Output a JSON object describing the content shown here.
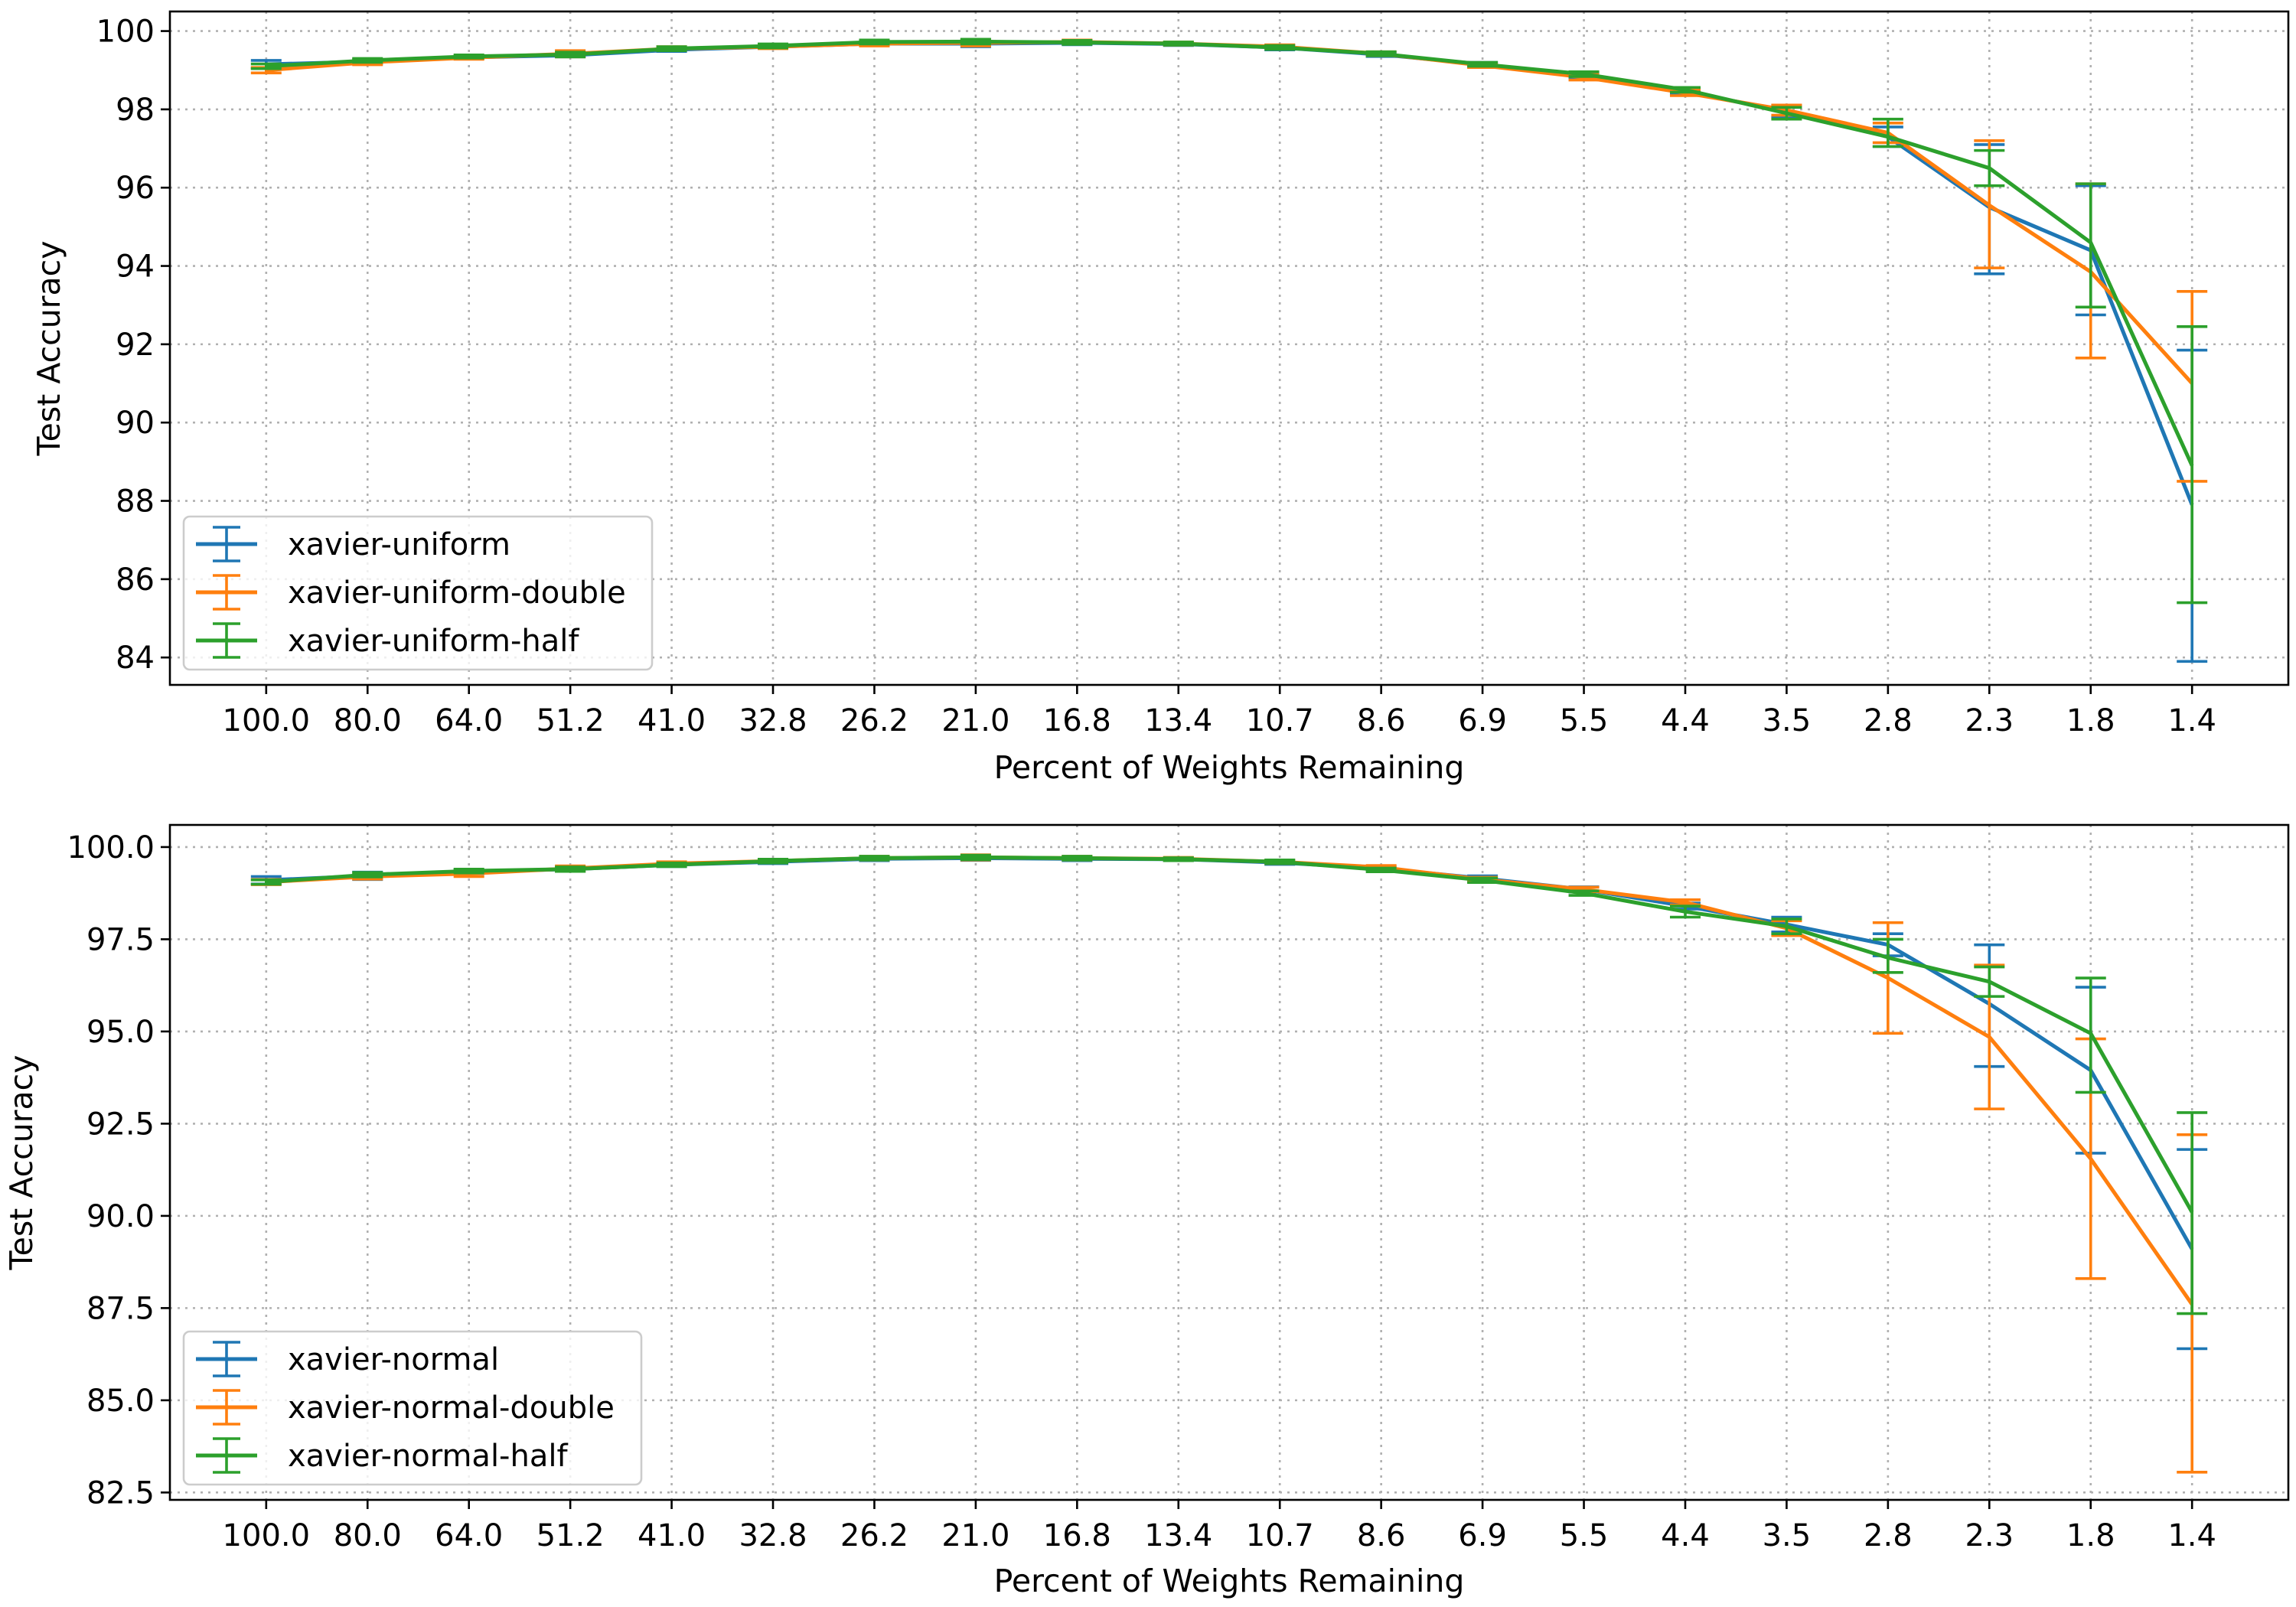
{
  "colors": {
    "blue": "#1f77b4",
    "orange": "#ff7f0e",
    "green": "#2ca02c"
  },
  "chart_data": [
    {
      "type": "line",
      "xlabel": "Percent of Weights Remaining",
      "ylabel": "Test Accuracy",
      "categories": [
        "100.0",
        "80.0",
        "64.0",
        "51.2",
        "41.0",
        "32.8",
        "26.2",
        "21.0",
        "16.8",
        "13.4",
        "10.7",
        "8.6",
        "6.9",
        "5.5",
        "4.4",
        "3.5",
        "2.8",
        "2.3",
        "1.8",
        "1.4"
      ],
      "ylim": [
        83.3,
        100.5
      ],
      "yticks": [
        84,
        86,
        88,
        90,
        92,
        94,
        96,
        98,
        100
      ],
      "yticklabels": [
        "84",
        "86",
        "88",
        "90",
        "92",
        "94",
        "96",
        "98",
        "100"
      ],
      "grid": true,
      "legend_position": "lower-left",
      "series": [
        {
          "name": "xavier-uniform",
          "color": "#1f77b4",
          "values": [
            99.15,
            99.22,
            99.33,
            99.38,
            99.52,
            99.6,
            99.68,
            99.68,
            99.7,
            99.67,
            99.58,
            99.4,
            99.15,
            98.85,
            98.45,
            97.95,
            97.3,
            95.5,
            94.4,
            87.9
          ],
          "lower": [
            99.05,
            99.17,
            99.3,
            99.34,
            99.48,
            99.56,
            99.64,
            99.6,
            99.65,
            99.63,
            99.52,
            99.35,
            99.1,
            98.8,
            98.38,
            97.8,
            97.05,
            93.8,
            92.75,
            83.9
          ],
          "upper": [
            99.25,
            99.27,
            99.36,
            99.42,
            99.56,
            99.64,
            99.72,
            99.76,
            99.75,
            99.71,
            99.64,
            99.45,
            99.2,
            98.9,
            98.52,
            98.1,
            97.55,
            97.1,
            96.05,
            91.85
          ]
        },
        {
          "name": "xavier-uniform-double",
          "color": "#ff7f0e",
          "values": [
            99.0,
            99.2,
            99.32,
            99.42,
            99.55,
            99.6,
            99.68,
            99.7,
            99.72,
            99.68,
            99.6,
            99.42,
            99.12,
            98.82,
            98.42,
            97.98,
            97.4,
            95.55,
            93.85,
            91.0
          ],
          "lower": [
            98.93,
            99.14,
            99.28,
            99.34,
            99.5,
            99.55,
            99.62,
            99.62,
            99.67,
            99.64,
            99.55,
            99.37,
            99.07,
            98.75,
            98.35,
            97.85,
            97.15,
            93.95,
            91.65,
            88.5
          ],
          "upper": [
            99.07,
            99.26,
            99.36,
            99.5,
            99.6,
            99.65,
            99.74,
            99.78,
            99.77,
            99.72,
            99.65,
            99.47,
            99.17,
            98.89,
            98.49,
            98.11,
            97.65,
            97.2,
            96.1,
            93.35
          ]
        },
        {
          "name": "xavier-uniform-half",
          "color": "#2ca02c",
          "values": [
            99.1,
            99.25,
            99.35,
            99.4,
            99.55,
            99.62,
            99.72,
            99.73,
            99.71,
            99.68,
            99.58,
            99.42,
            99.15,
            98.9,
            98.5,
            97.9,
            97.3,
            96.5,
            94.6,
            88.9
          ],
          "lower": [
            99.04,
            99.2,
            99.31,
            99.34,
            99.5,
            99.57,
            99.67,
            99.67,
            99.66,
            99.64,
            99.53,
            99.37,
            99.1,
            98.84,
            98.44,
            97.75,
            97.05,
            96.05,
            92.95,
            85.4
          ],
          "upper": [
            99.16,
            99.3,
            99.39,
            99.46,
            99.6,
            99.67,
            99.77,
            99.79,
            99.76,
            99.72,
            99.63,
            99.47,
            99.2,
            98.96,
            98.56,
            98.05,
            97.75,
            96.95,
            96.1,
            92.45
          ]
        }
      ]
    },
    {
      "type": "line",
      "xlabel": "Percent of Weights Remaining",
      "ylabel": "Test Accuracy",
      "categories": [
        "100.0",
        "80.0",
        "64.0",
        "51.2",
        "41.0",
        "32.8",
        "26.2",
        "21.0",
        "16.8",
        "13.4",
        "10.7",
        "8.6",
        "6.9",
        "5.5",
        "4.4",
        "3.5",
        "2.8",
        "2.3",
        "1.8",
        "1.4"
      ],
      "ylim": [
        82.3,
        100.6
      ],
      "yticks": [
        82.5,
        85.0,
        87.5,
        90.0,
        92.5,
        95.0,
        97.5,
        100.0
      ],
      "yticklabels": [
        "82.5",
        "85.0",
        "87.5",
        "90.0",
        "92.5",
        "95.0",
        "97.5",
        "100.0"
      ],
      "grid": true,
      "legend_position": "lower-left",
      "series": [
        {
          "name": "xavier-normal",
          "color": "#1f77b4",
          "values": [
            99.1,
            99.22,
            99.33,
            99.4,
            99.52,
            99.6,
            99.68,
            99.7,
            99.68,
            99.67,
            99.58,
            99.42,
            99.15,
            98.85,
            98.4,
            97.9,
            97.35,
            95.75,
            93.95,
            89.1
          ],
          "lower": [
            99.0,
            99.12,
            99.28,
            99.34,
            99.47,
            99.55,
            99.63,
            99.64,
            99.63,
            99.63,
            99.53,
            99.37,
            99.08,
            98.78,
            98.32,
            97.7,
            97.05,
            94.05,
            91.7,
            86.4
          ],
          "upper": [
            99.2,
            99.32,
            99.38,
            99.46,
            99.57,
            99.65,
            99.73,
            99.76,
            99.73,
            99.71,
            99.63,
            99.47,
            99.22,
            98.92,
            98.48,
            98.1,
            97.65,
            97.35,
            96.2,
            91.8
          ]
        },
        {
          "name": "xavier-normal-double",
          "color": "#ff7f0e",
          "values": [
            99.05,
            99.2,
            99.28,
            99.42,
            99.55,
            99.62,
            99.7,
            99.72,
            99.7,
            99.68,
            99.6,
            99.45,
            99.12,
            98.85,
            98.5,
            97.8,
            96.45,
            94.85,
            91.55,
            87.6
          ],
          "lower": [
            98.98,
            99.13,
            99.2,
            99.35,
            99.5,
            99.57,
            99.65,
            99.65,
            99.65,
            99.64,
            99.55,
            99.4,
            99.06,
            98.79,
            98.43,
            97.6,
            94.95,
            92.9,
            88.3,
            83.05
          ],
          "upper": [
            99.12,
            99.27,
            99.36,
            99.49,
            99.6,
            99.67,
            99.75,
            99.79,
            99.75,
            99.72,
            99.65,
            99.5,
            99.18,
            98.91,
            98.57,
            98.0,
            97.95,
            96.8,
            94.8,
            92.2
          ]
        },
        {
          "name": "xavier-normal-half",
          "color": "#2ca02c",
          "values": [
            99.05,
            99.25,
            99.35,
            99.4,
            99.52,
            99.62,
            99.7,
            99.72,
            99.7,
            99.67,
            99.6,
            99.38,
            99.1,
            98.75,
            98.25,
            97.85,
            97.0,
            96.35,
            94.95,
            90.1
          ],
          "lower": [
            98.99,
            99.19,
            99.3,
            99.34,
            99.47,
            99.57,
            99.65,
            99.66,
            99.65,
            99.63,
            99.55,
            99.33,
            99.04,
            98.69,
            98.1,
            97.65,
            96.6,
            95.95,
            93.35,
            87.35
          ],
          "upper": [
            99.11,
            99.31,
            99.4,
            99.46,
            99.57,
            99.67,
            99.75,
            99.78,
            99.75,
            99.71,
            99.65,
            99.43,
            99.16,
            98.81,
            98.4,
            98.05,
            97.5,
            96.75,
            96.45,
            92.8
          ]
        }
      ]
    }
  ]
}
